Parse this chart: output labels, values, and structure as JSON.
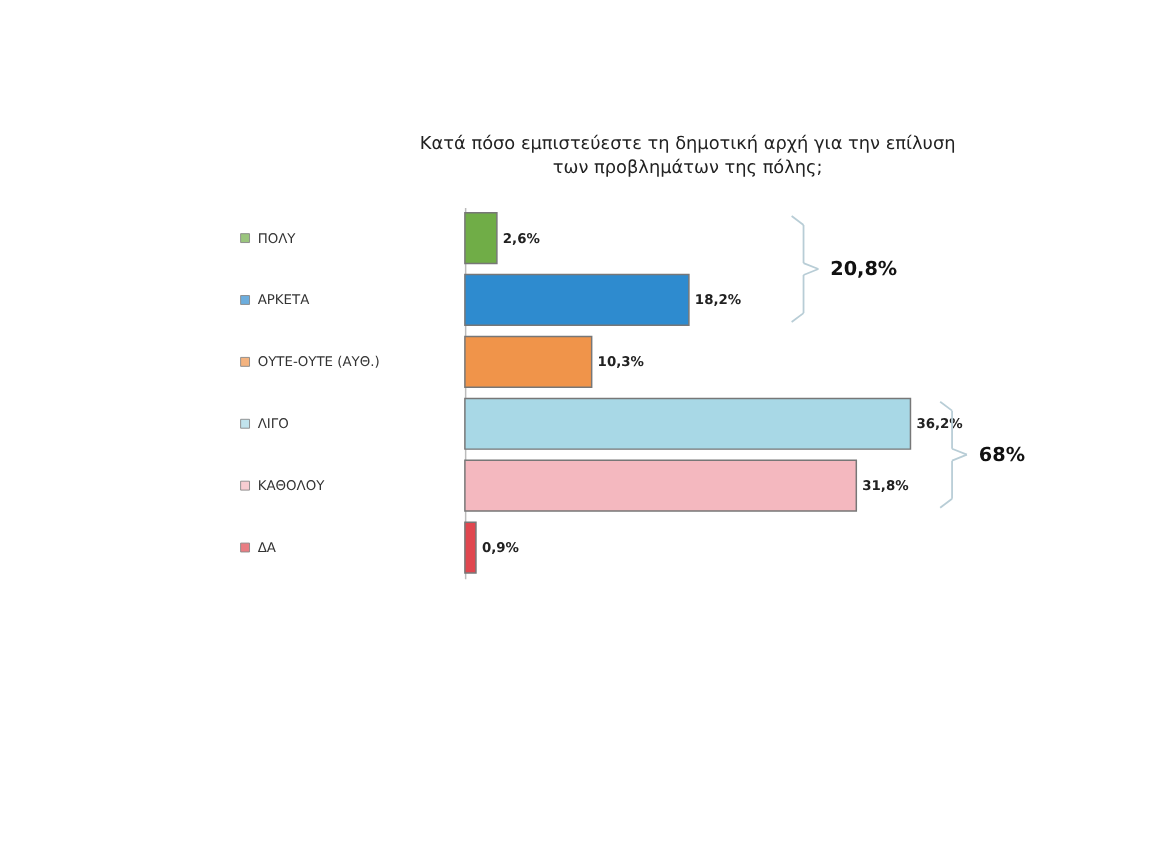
{
  "chart_data": {
    "type": "bar",
    "orientation": "horizontal",
    "title": "Κατά πόσο εμπιστεύεστε τη δημοτική αρχή για την επίλυση των προβλημάτων της πόλης;",
    "categories": [
      "ΠΟΛΥ",
      "ΑΡΚΕΤΑ",
      "ΟΥΤΕ-ΟΥΤΕ (ΑΥΘ.)",
      "ΛΙΓΟ",
      "ΚΑΘΟΛΟΥ",
      "ΔΑ"
    ],
    "values": [
      2.6,
      18.2,
      10.3,
      36.2,
      31.8,
      0.9
    ],
    "value_labels": [
      "2,6%",
      "18,2%",
      "10,3%",
      "36,2%",
      "31,8%",
      "0,9%"
    ],
    "colors": [
      "#70ad47",
      "#2e8bcf",
      "#f0944a",
      "#a8d8e6",
      "#f4b8bf",
      "#e0474f"
    ],
    "annotations": [
      "20,8%",
      "68%"
    ],
    "tick_labels": "y",
    "grid": false
  }
}
